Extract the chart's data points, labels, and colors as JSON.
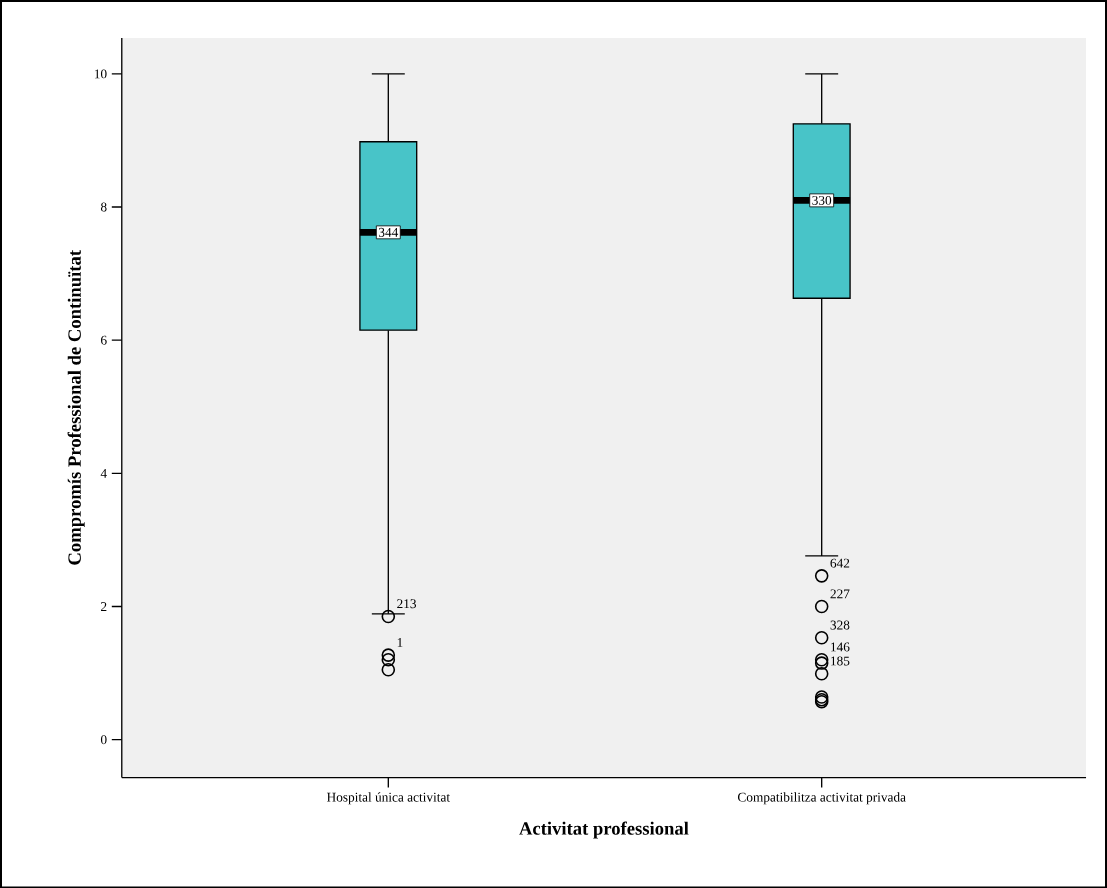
{
  "chart_data": {
    "type": "box",
    "xlabel": "Activitat professional",
    "ylabel": "Compromís Professional de Continuïtat",
    "categories": [
      "Hospital única activitat",
      "Compatibilitza activitat privada"
    ],
    "series": [
      {
        "color": "#48c4c8",
        "boxes": [
          {
            "low": 1.89,
            "q1": 6.15,
            "median": 7.62,
            "q3": 8.98,
            "high": 10,
            "outliers": [
              1.85,
              1.27,
              1.2,
              1.05
            ]
          },
          {
            "low": 2.76,
            "q1": 6.63,
            "median": 8.1,
            "q3": 9.25,
            "high": 10,
            "outliers": [
              2.46,
              2.0,
              1.53,
              1.2,
              1.15,
              0.99,
              0.64,
              0.6,
              0.57
            ]
          }
        ]
      }
    ],
    "ylim": [
      -0.57,
      10.54
    ],
    "yticks": [
      0,
      2,
      4,
      6,
      8,
      10
    ],
    "grid": false,
    "marker": "circle",
    "annotations": [
      "344",
      "330",
      "213",
      "1",
      "642",
      "227",
      "328",
      "146",
      "185"
    ]
  }
}
